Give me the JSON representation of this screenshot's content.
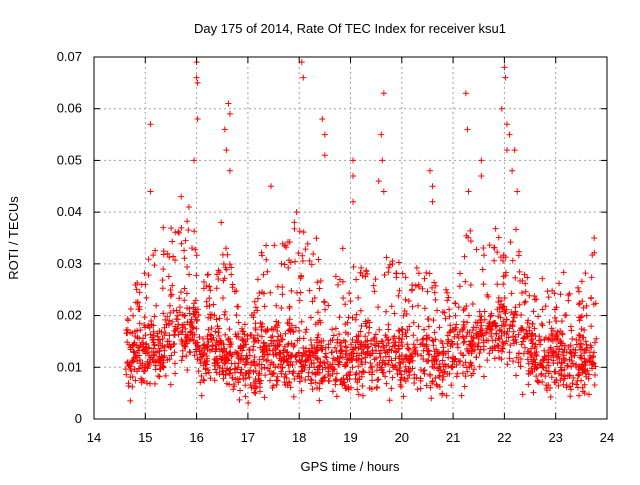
{
  "chart_data": {
    "type": "scatter",
    "title": "Day 175 of 2014, Rate Of TEC Index for receiver ksu1",
    "xlabel": "GPS time / hours",
    "ylabel": "ROTI / TECUs",
    "xlim": [
      14,
      24
    ],
    "ylim": [
      0,
      0.07
    ],
    "x_ticks": [
      "14",
      "15",
      "16",
      "17",
      "18",
      "19",
      "20",
      "21",
      "22",
      "23",
      "24"
    ],
    "y_ticks": [
      "0",
      "0.01",
      "0.02",
      "0.03",
      "0.04",
      "0.05",
      "0.06",
      "0.07"
    ],
    "grid": true,
    "marker": "+",
    "series": [
      {
        "name": "ROTI",
        "color": "#ff0000",
        "x_range": [
          14.62,
          23.8
        ],
        "bulk_level": [
          [
            14.62,
            0.013
          ],
          [
            14.8,
            0.012
          ],
          [
            15.0,
            0.012
          ],
          [
            15.3,
            0.013
          ],
          [
            15.6,
            0.016
          ],
          [
            15.9,
            0.017
          ],
          [
            16.1,
            0.012
          ],
          [
            16.4,
            0.013
          ],
          [
            16.8,
            0.011
          ],
          [
            17.2,
            0.011
          ],
          [
            17.6,
            0.013
          ],
          [
            18.0,
            0.012
          ],
          [
            18.4,
            0.011
          ],
          [
            18.8,
            0.011
          ],
          [
            19.2,
            0.012
          ],
          [
            19.6,
            0.012
          ],
          [
            20.0,
            0.012
          ],
          [
            20.4,
            0.011
          ],
          [
            20.8,
            0.012
          ],
          [
            21.2,
            0.013
          ],
          [
            21.6,
            0.016
          ],
          [
            22.0,
            0.017
          ],
          [
            22.4,
            0.014
          ],
          [
            22.8,
            0.012
          ],
          [
            23.2,
            0.011
          ],
          [
            23.5,
            0.011
          ],
          [
            23.8,
            0.01
          ]
        ],
        "upper_envelope": [
          [
            14.62,
            0.022
          ],
          [
            14.8,
            0.026
          ],
          [
            15.0,
            0.03
          ],
          [
            15.2,
            0.033
          ],
          [
            15.4,
            0.036
          ],
          [
            15.6,
            0.038
          ],
          [
            15.8,
            0.04
          ],
          [
            16.0,
            0.04
          ],
          [
            16.05,
            0.028
          ],
          [
            16.3,
            0.03
          ],
          [
            16.6,
            0.034
          ],
          [
            16.8,
            0.024
          ],
          [
            17.0,
            0.016
          ],
          [
            17.2,
            0.03
          ],
          [
            17.4,
            0.037
          ],
          [
            17.6,
            0.033
          ],
          [
            18.0,
            0.04
          ],
          [
            18.4,
            0.034
          ],
          [
            18.8,
            0.028
          ],
          [
            19.0,
            0.031
          ],
          [
            19.4,
            0.03
          ],
          [
            19.6,
            0.032
          ],
          [
            20.0,
            0.031
          ],
          [
            20.4,
            0.029
          ],
          [
            20.8,
            0.027
          ],
          [
            21.0,
            0.022
          ],
          [
            21.3,
            0.038
          ],
          [
            21.6,
            0.034
          ],
          [
            22.0,
            0.04
          ],
          [
            22.4,
            0.035
          ],
          [
            22.8,
            0.026
          ],
          [
            23.2,
            0.029
          ],
          [
            23.5,
            0.027
          ],
          [
            23.8,
            0.034
          ]
        ],
        "min_level": 0.003,
        "spikes": [
          [
            15.1,
            0.057
          ],
          [
            15.1,
            0.044
          ],
          [
            15.35,
            0.037
          ],
          [
            15.7,
            0.043
          ],
          [
            15.85,
            0.041
          ],
          [
            15.95,
            0.05
          ],
          [
            16.0,
            0.069
          ],
          [
            16.0,
            0.066
          ],
          [
            16.02,
            0.065
          ],
          [
            16.02,
            0.058
          ],
          [
            16.48,
            0.038
          ],
          [
            16.55,
            0.056
          ],
          [
            16.58,
            0.052
          ],
          [
            16.62,
            0.061
          ],
          [
            16.65,
            0.059
          ],
          [
            16.65,
            0.048
          ],
          [
            17.45,
            0.045
          ],
          [
            17.95,
            0.04
          ],
          [
            18.05,
            0.069
          ],
          [
            18.08,
            0.066
          ],
          [
            18.45,
            0.058
          ],
          [
            18.5,
            0.055
          ],
          [
            18.5,
            0.051
          ],
          [
            18.85,
            0.033
          ],
          [
            19.05,
            0.05
          ],
          [
            19.05,
            0.047
          ],
          [
            19.05,
            0.042
          ],
          [
            19.55,
            0.046
          ],
          [
            19.6,
            0.055
          ],
          [
            19.62,
            0.05
          ],
          [
            19.65,
            0.063
          ],
          [
            19.65,
            0.044
          ],
          [
            20.55,
            0.048
          ],
          [
            20.6,
            0.045
          ],
          [
            20.6,
            0.042
          ],
          [
            21.25,
            0.063
          ],
          [
            21.28,
            0.056
          ],
          [
            21.3,
            0.044
          ],
          [
            21.55,
            0.047
          ],
          [
            21.55,
            0.05
          ],
          [
            21.95,
            0.06
          ],
          [
            22.0,
            0.068
          ],
          [
            22.02,
            0.066
          ],
          [
            22.05,
            0.057
          ],
          [
            22.05,
            0.052
          ],
          [
            22.1,
            0.055
          ],
          [
            22.15,
            0.048
          ],
          [
            22.2,
            0.052
          ],
          [
            22.25,
            0.044
          ],
          [
            23.75,
            0.035
          ]
        ]
      }
    ]
  }
}
